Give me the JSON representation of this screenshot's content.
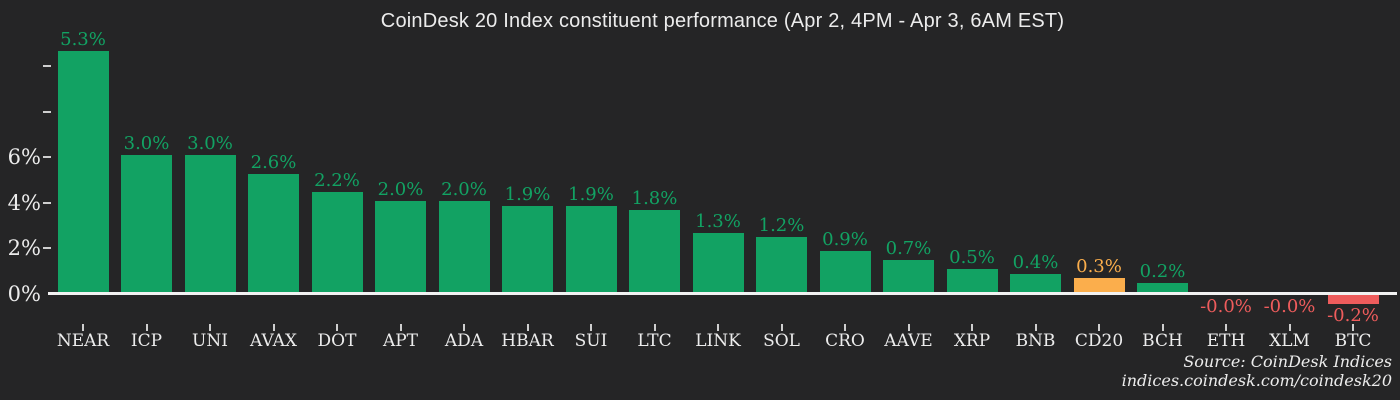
{
  "title": "CoinDesk 20 Index constituent performance (Apr 2, 4PM - Apr 3, 6AM EST)",
  "source": {
    "line1": "Source: CoinDesk Indices",
    "line2": "indices.coindesk.com/coindesk20"
  },
  "chart_data": {
    "type": "bar",
    "title": "CoinDesk 20 Index constituent performance (Apr 2, 4PM - Apr 3, 6AM EST)",
    "categories": [
      "NEAR",
      "ICP",
      "UNI",
      "AVAX",
      "DOT",
      "APT",
      "ADA",
      "HBAR",
      "SUI",
      "LTC",
      "LINK",
      "SOL",
      "CRO",
      "AAVE",
      "XRP",
      "BNB",
      "CD20",
      "BCH",
      "ETH",
      "XLM",
      "BTC"
    ],
    "values": [
      5.3,
      3.0,
      3.0,
      2.6,
      2.2,
      2.0,
      2.0,
      1.9,
      1.9,
      1.8,
      1.3,
      1.2,
      0.9,
      0.7,
      0.5,
      0.4,
      0.3,
      0.2,
      -0.0,
      -0.0,
      -0.2
    ],
    "value_labels": [
      "5.3%",
      "3.0%",
      "3.0%",
      "2.6%",
      "2.2%",
      "2.0%",
      "2.0%",
      "1.9%",
      "1.9%",
      "1.8%",
      "1.3%",
      "1.2%",
      "0.9%",
      "0.7%",
      "0.5%",
      "0.4%",
      "0.3%",
      "0.2%",
      "-0.0%",
      "-0.0%",
      "-0.2%"
    ],
    "highlight_index": 16,
    "y_axis": {
      "tick_labels": [
        "0%",
        "2%",
        "4%",
        "6%"
      ],
      "unlabeled_ticks": 2,
      "grid": false
    },
    "legend": "none",
    "colors": {
      "positive": "#12a263",
      "negative": "#ee5c5c",
      "highlight": "#fbae4c",
      "background": "#252526",
      "text": "#ececec",
      "axis_line": "#f2f2f2",
      "tick": "#cfcfcf"
    }
  }
}
